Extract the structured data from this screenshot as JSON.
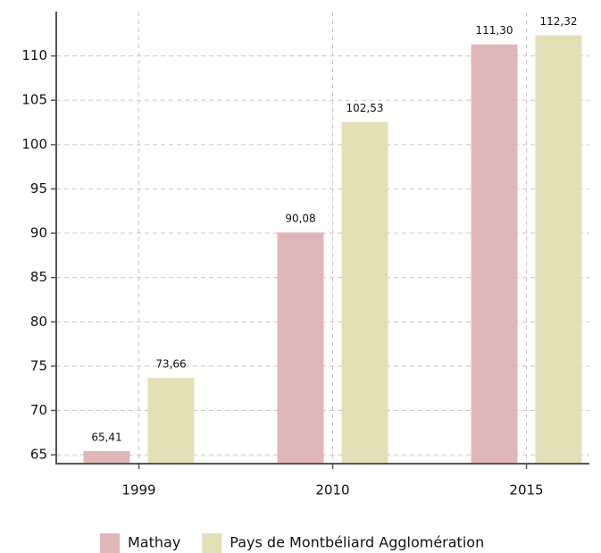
{
  "chart_data": {
    "type": "bar",
    "categories": [
      "1999",
      "2010",
      "2015"
    ],
    "series": [
      {
        "name": "Mathay",
        "color": "#e0b7b9",
        "values": [
          65.41,
          90.08,
          111.3
        ],
        "value_labels": [
          "65,41",
          "90,08",
          "111,30"
        ]
      },
      {
        "name": "Pays de Montbéliard Agglomération",
        "color": "#e3dfb7",
        "values": [
          73.66,
          102.53,
          112.32
        ],
        "value_labels": [
          "73,66",
          "102,53",
          "112,32"
        ]
      }
    ],
    "ylim": [
      64,
      115
    ],
    "yticks": [
      65,
      70,
      75,
      80,
      85,
      90,
      95,
      100,
      105,
      110
    ],
    "grid": true
  }
}
